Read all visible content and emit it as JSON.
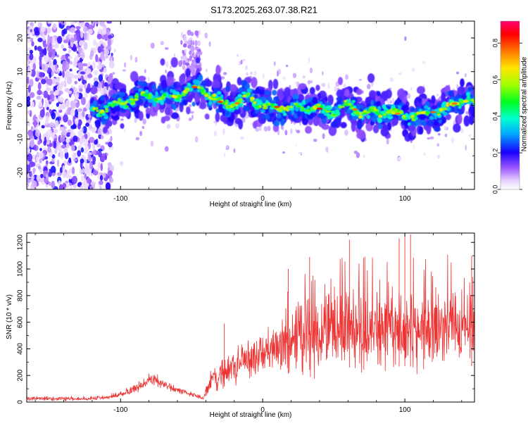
{
  "title": "S173.2025.263.07.38.R21",
  "chart_data": [
    {
      "type": "heatmap",
      "xlabel": "Height of straight line (km)",
      "ylabel": "Frequency (Hz)",
      "xlim": [
        -166,
        149
      ],
      "ylim": [
        -25,
        25
      ],
      "xticks": [
        -100,
        0,
        100
      ],
      "yticks": [
        -20,
        -10,
        0,
        10,
        20
      ],
      "xtick_labels": [
        "-100",
        "0",
        "100"
      ],
      "ytick_labels": [
        "-20",
        "-10",
        "0",
        "10",
        "20"
      ],
      "colorbar": {
        "label": "Normalized spectral amplitude",
        "range": [
          0,
          0.92
        ],
        "ticks": [
          0,
          0.2,
          0.4,
          0.6,
          0.8
        ],
        "tick_labels": [
          "0.0",
          "0.2",
          "0.4",
          "0.6",
          "0.8"
        ]
      },
      "ridge": {
        "x": [
          -120,
          -110,
          -100,
          -90,
          -80,
          -70,
          -60,
          -50,
          -45,
          -40,
          -35,
          -30,
          -25,
          -20,
          -10,
          0,
          10,
          20,
          30,
          40,
          50,
          60,
          70,
          80,
          90,
          100,
          110,
          120,
          130,
          140,
          149
        ],
        "frequency_hz": [
          -2,
          -1,
          0.5,
          2,
          3,
          2,
          3,
          5,
          6,
          4,
          2,
          1,
          0.5,
          0,
          3,
          -0.5,
          -0.5,
          -1,
          -0.5,
          -1,
          -2,
          0,
          -2.5,
          -2,
          -2,
          -3,
          -3,
          -2,
          -1,
          2,
          0
        ]
      },
      "noise_region_km": [
        -166,
        -110
      ]
    },
    {
      "type": "line",
      "xlabel": "Height of straight line (km)",
      "ylabel": "SNR (10 * v/v)",
      "xlim": [
        -166,
        149
      ],
      "ylim": [
        0,
        1270
      ],
      "xticks": [
        -100,
        0,
        100
      ],
      "yticks": [
        0,
        200,
        400,
        600,
        800,
        1000,
        1200
      ],
      "xtick_labels": [
        "-100",
        "0",
        "100"
      ],
      "ytick_labels": [
        "0",
        "200",
        "400",
        "600",
        "800",
        "1000",
        "1200"
      ],
      "color": "#ee3333",
      "series": [
        {
          "name": "SNR",
          "x": [
            -166,
            -150,
            -130,
            -110,
            -100,
            -90,
            -80,
            -75,
            -70,
            -60,
            -50,
            -42,
            -37,
            -30,
            -25,
            -20,
            -10,
            0,
            10,
            18,
            20,
            30,
            40,
            50,
            60,
            70,
            80,
            90,
            100,
            110,
            120,
            130,
            140,
            149
          ],
          "mean": [
            25,
            25,
            25,
            35,
            60,
            100,
            160,
            170,
            130,
            90,
            60,
            30,
            150,
            210,
            250,
            260,
            330,
            360,
            400,
            430,
            450,
            480,
            500,
            510,
            520,
            520,
            520,
            530,
            540,
            530,
            530,
            540,
            540,
            540
          ],
          "amp": [
            20,
            20,
            20,
            20,
            30,
            40,
            55,
            60,
            40,
            30,
            20,
            15,
            100,
            130,
            150,
            150,
            170,
            190,
            220,
            260,
            300,
            320,
            330,
            340,
            340,
            340,
            340,
            340,
            340,
            340,
            340,
            340,
            340,
            340
          ]
        }
      ],
      "peaks": [
        {
          "x": -27,
          "y": 590
        },
        {
          "x": 18,
          "y": 1000
        },
        {
          "x": 33,
          "y": 1090
        },
        {
          "x": 61,
          "y": 1220
        },
        {
          "x": 96,
          "y": 1230
        },
        {
          "x": 100,
          "y": 1270
        },
        {
          "x": 104,
          "y": 1260
        },
        {
          "x": 147,
          "y": 1100
        }
      ]
    }
  ]
}
